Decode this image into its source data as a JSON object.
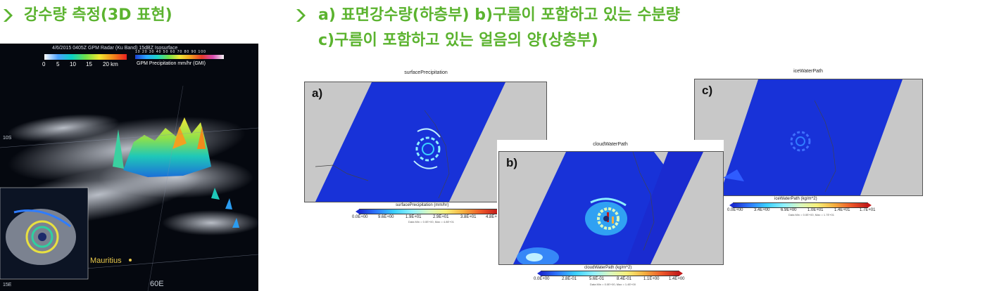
{
  "headings": {
    "left": "강수량 측정(3D 표현)",
    "right_line1": "a) 표면강수량(하층부) b)구름이 포함하고 있는 수분량",
    "right_line2": "c)구름이 포함하고 있는 얼음의 양(상층부)"
  },
  "panel3d": {
    "title": "4/6/2015 0405Z GPM Radar (Ku Band) 15dBZ Isosurface",
    "km_ticks": [
      "0",
      "5",
      "10",
      "15",
      "20 km"
    ],
    "rate_ticks": "10  20  30  40  50  60  70  80  90  100",
    "rate_label": "GPM Precipitation mm/hr (GMI)",
    "place": "Mauritius",
    "lat": "10S",
    "lat2": "15E",
    "lon": "60E"
  },
  "figures": [
    {
      "id": "a",
      "letter": "a)",
      "title": "surfacePrecipitation",
      "colorbar_label": "surfacePrecipitation (mm/hr)",
      "ticks": [
        "0.0E+00",
        "9.6E+00",
        "1.9E+01",
        "2.9E+01",
        "3.8E+01",
        "4.8E+01"
      ],
      "minmax": "Data Min = 0.0E+00, Max = 4.8E+01"
    },
    {
      "id": "b",
      "letter": "b)",
      "title": "cloudWaterPath",
      "colorbar_label": "cloudWaterPath (kg/m^2)",
      "ticks": [
        "0.0E+00",
        "2.8E-01",
        "5.6E-01",
        "8.4E-01",
        "1.1E+00",
        "1.4E+00"
      ],
      "minmax": "Data Min = 0.0E+00, Max = 1.4E+00"
    },
    {
      "id": "c",
      "letter": "c)",
      "title": "iceWaterPath",
      "colorbar_label": "iceWaterPath (kg/m^2)",
      "ticks": [
        "0.0E+00",
        "3.4E+00",
        "6.9E+00",
        "1.0E+01",
        "1.4E+01",
        "1.7E+01"
      ],
      "minmax": "Data Min = 0.0E+00, Max = 1.7E+01"
    }
  ],
  "colors": {
    "heading_green": "#5bb32f",
    "swath_blue": "#1832d8",
    "land_gray": "#c8c8c8"
  }
}
